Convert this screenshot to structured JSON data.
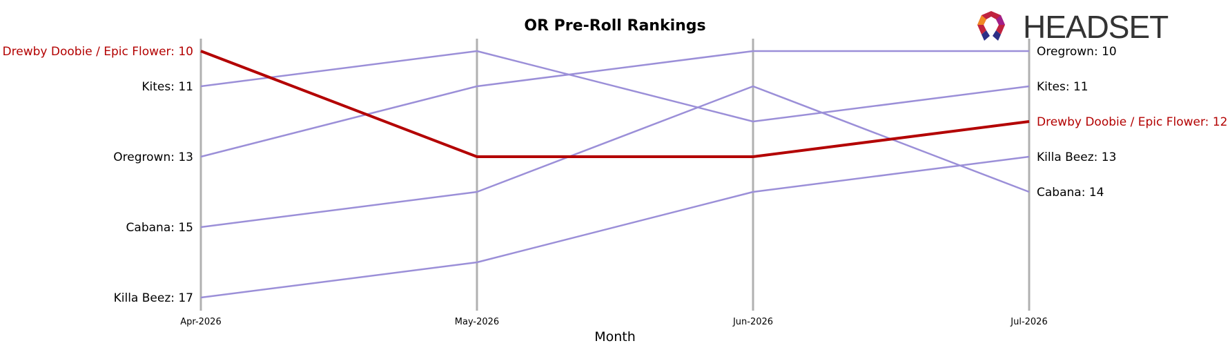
{
  "chart_data": {
    "type": "line",
    "title": "OR Pre-Roll Rankings",
    "xlabel": "Month",
    "ylabel": "",
    "categories": [
      "Apr-2026",
      "May-2026",
      "Jun-2026",
      "Jul-2026"
    ],
    "y_axis": {
      "inverted": true,
      "range": [
        10,
        17
      ]
    },
    "grid": false,
    "highlight_color": "#b30000",
    "other_color": "#9b8fd8",
    "vline_color": "#b0b0b0",
    "series": [
      {
        "name": "Drewby Doobie / Epic Flower",
        "values": [
          10,
          13,
          13,
          12
        ],
        "highlight": true
      },
      {
        "name": "Kites",
        "values": [
          11,
          10,
          12,
          11
        ],
        "highlight": false
      },
      {
        "name": "Oregrown",
        "values": [
          13,
          11,
          10,
          10
        ],
        "highlight": false
      },
      {
        "name": "Cabana",
        "values": [
          15,
          14,
          11,
          14
        ],
        "highlight": false
      },
      {
        "name": "Killa Beez",
        "values": [
          17,
          16,
          14,
          13
        ],
        "highlight": false
      }
    ]
  },
  "labels": {
    "left": [
      {
        "text": "Drewby Doobie / Epic Flower: 10",
        "rank": 10,
        "highlight": true
      },
      {
        "text": "Kites: 11",
        "rank": 11,
        "highlight": false
      },
      {
        "text": "Oregrown: 13",
        "rank": 13,
        "highlight": false
      },
      {
        "text": "Cabana: 15",
        "rank": 15,
        "highlight": false
      },
      {
        "text": "Killa Beez: 17",
        "rank": 17,
        "highlight": false
      }
    ],
    "right": [
      {
        "text": "Oregrown: 10",
        "rank": 10,
        "highlight": false
      },
      {
        "text": "Kites: 11",
        "rank": 11,
        "highlight": false
      },
      {
        "text": "Drewby Doobie / Epic Flower: 12",
        "rank": 12,
        "highlight": true
      },
      {
        "text": "Killa Beez: 13",
        "rank": 13,
        "highlight": false
      },
      {
        "text": "Cabana: 14",
        "rank": 14,
        "highlight": false
      }
    ]
  },
  "logo": {
    "text": "HEADSET",
    "icon": "headset-logo-icon"
  }
}
